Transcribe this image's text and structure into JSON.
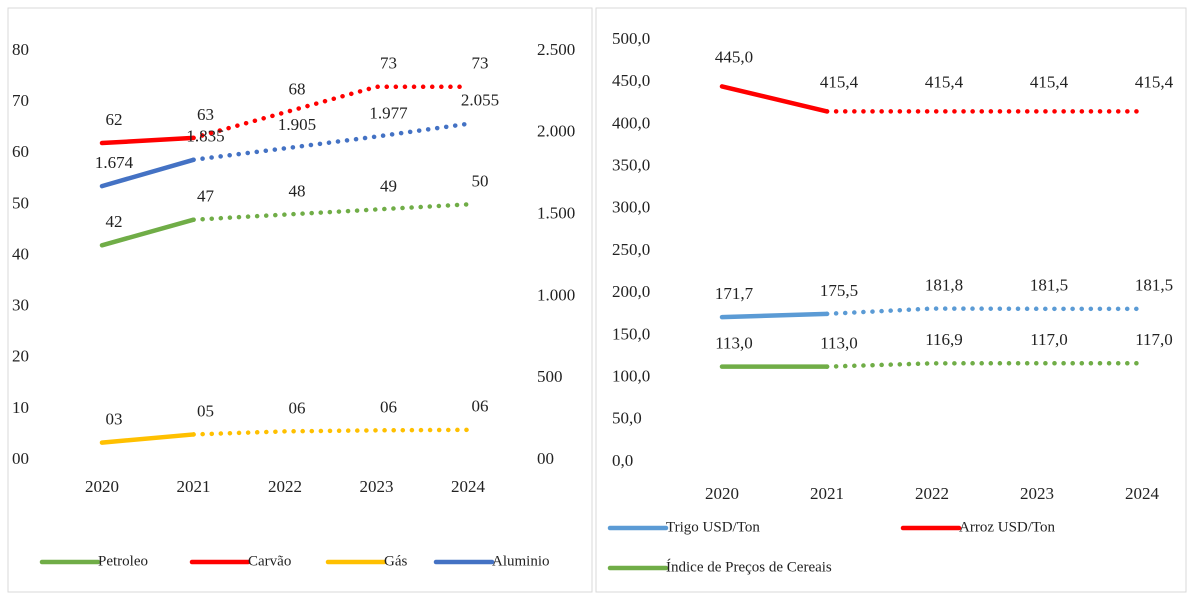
{
  "chart_data": [
    {
      "type": "line",
      "categories": [
        "2020",
        "2021",
        "2022",
        "2023",
        "2024"
      ],
      "ylim": [
        0,
        80
      ],
      "yticks": [
        {
          "value": 0,
          "label": "00"
        },
        10,
        20,
        30,
        40,
        50,
        60,
        70,
        80
      ],
      "y2lim": [
        0,
        2500
      ],
      "y2ticks": [
        {
          "value": 0,
          "label": "00"
        },
        500,
        {
          "value": 1000,
          "label": "1.000"
        },
        {
          "value": 1500,
          "label": "1.500"
        },
        {
          "value": 2000,
          "label": "2.000"
        },
        {
          "value": 2500,
          "label": "2.500"
        }
      ],
      "series": [
        {
          "name": "Petroleo",
          "color": "#70ad47",
          "values": [
            42,
            47,
            48,
            49,
            50
          ]
        },
        {
          "name": "Carvão",
          "color": "#ff0000",
          "values": [
            62,
            63,
            68,
            73,
            73
          ]
        },
        {
          "name": "Gás",
          "color": "#ffc000",
          "values": [
            3.4,
            5.0,
            5.6,
            5.8,
            5.9
          ],
          "value_labels": [
            "03",
            "05",
            "06",
            "06",
            "06"
          ]
        },
        {
          "name": "Aluminio",
          "color": "#4472c4",
          "axis": "y2",
          "values": [
            1674,
            1835,
            1905,
            1977,
            2055
          ],
          "value_labels": [
            "1.674",
            "1.835",
            "1.905",
            "1.977",
            "2.055"
          ]
        }
      ]
    },
    {
      "type": "line",
      "categories": [
        "2020",
        "2021",
        "2022",
        "2023",
        "2024"
      ],
      "ylim": [
        0,
        500
      ],
      "yticks": [
        {
          "value": 0,
          "label": "0,0"
        },
        {
          "value": 50,
          "label": "50,0"
        },
        {
          "value": 100,
          "label": "100,0"
        },
        {
          "value": 150,
          "label": "150,0"
        },
        {
          "value": 200,
          "label": "200,0"
        },
        {
          "value": 250,
          "label": "250,0"
        },
        {
          "value": 300,
          "label": "300,0"
        },
        {
          "value": 350,
          "label": "350,0"
        },
        {
          "value": 400,
          "label": "400,0"
        },
        {
          "value": 450,
          "label": "450,0"
        },
        {
          "value": 500,
          "label": "500,0"
        }
      ],
      "series": [
        {
          "name": "Trigo USD/Ton",
          "color": "#5b9bd5",
          "values": [
            171.7,
            175.5,
            181.8,
            181.5,
            181.5
          ],
          "value_labels": [
            "171,7",
            "175,5",
            "181,8",
            "181,5",
            "181,5"
          ]
        },
        {
          "name": "Arroz USD/Ton",
          "color": "#ff0000",
          "values": [
            445.0,
            415.4,
            415.4,
            415.4,
            415.4
          ],
          "value_labels": [
            "445,0",
            "415,4",
            "415,4",
            "415,4",
            "415,4"
          ]
        },
        {
          "name": "Índice de Preços de Cereais",
          "color": "#70ad47",
          "values": [
            113.0,
            113.0,
            116.9,
            117.0,
            117.0
          ],
          "value_labels": [
            "113,0",
            "113,0",
            "116,9",
            "117,0",
            "117,0"
          ]
        }
      ]
    }
  ]
}
